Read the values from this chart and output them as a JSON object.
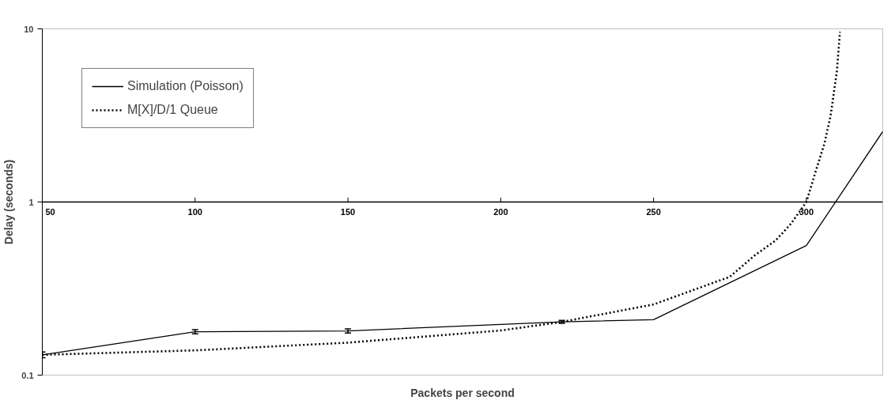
{
  "chart_data": {
    "type": "line",
    "xlabel": "Packets per second",
    "ylabel": "Delay (seconds)",
    "log": "y",
    "xlim": [
      50,
      325
    ],
    "ylim": [
      0.1,
      10
    ],
    "xticks": [
      50,
      100,
      150,
      200,
      250,
      300
    ],
    "yticks": [
      0.1,
      1,
      10
    ],
    "grid": false,
    "legend": "top left",
    "marker": "none",
    "series": [
      {
        "name": "Simulation (Poisson)",
        "color": "#000000",
        "line_style": "solid",
        "x": [
          50,
          100,
          150,
          220,
          250,
          300,
          325
        ],
        "values": [
          0.131,
          0.178,
          0.18,
          0.203,
          0.209,
          0.56,
          2.55
        ],
        "errors": [
          0.005,
          0.005,
          0.005,
          0.004,
          null,
          null,
          null
        ]
      },
      {
        "name": "M[X]/D/1 Queue",
        "color": "#000000",
        "line_style": "dotted",
        "x": [
          50,
          100,
          150,
          200,
          220,
          250,
          275,
          283,
          290,
          295,
          300,
          303,
          306,
          308,
          310,
          311
        ],
        "values": [
          0.131,
          0.139,
          0.154,
          0.181,
          0.203,
          0.256,
          0.37,
          0.49,
          0.6,
          0.75,
          1.0,
          1.49,
          2.2,
          3.2,
          5.7,
          9.6
        ]
      }
    ]
  }
}
